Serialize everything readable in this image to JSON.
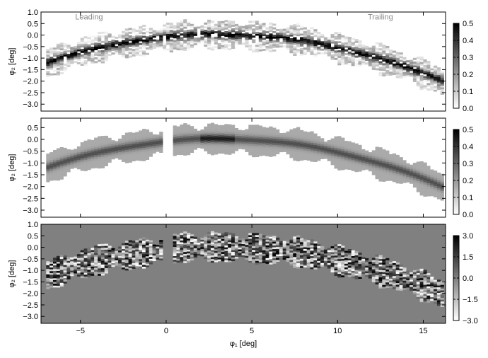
{
  "chart_data": [
    {
      "type": "heatmap",
      "panel": "data",
      "xlim": [
        -7.3,
        16.3
      ],
      "ylim": [
        -3.3,
        1.0
      ],
      "yticks": [
        1.0,
        0.5,
        0.0,
        -0.5,
        -1.0,
        -1.5,
        -2.0,
        -2.5,
        -3.0
      ],
      "ytick_labels": [
        "1.0",
        "0.5",
        "0.0",
        "−0.5",
        "−1.0",
        "−1.5",
        "−2.0",
        "−2.5",
        "−3.0"
      ],
      "ylabel": "φ₂ [deg]",
      "annotations": [
        {
          "text": "Leading",
          "x": -4.5,
          "y": 0.8
        },
        {
          "text": "Trailing",
          "x": 12.5,
          "y": 0.8
        }
      ],
      "colorbar": {
        "range": [
          0.0,
          0.5
        ],
        "ticks": [
          0.5,
          0.4,
          0.3,
          0.2,
          0.1,
          0.0
        ],
        "tick_labels": [
          "0.5",
          "0.4",
          "0.3",
          "0.2",
          "0.1",
          "0.0"
        ]
      }
    },
    {
      "type": "heatmap",
      "panel": "model",
      "xlim": [
        -7.3,
        16.3
      ],
      "ylim": [
        -3.3,
        0.9
      ],
      "yticks": [
        0.5,
        0.0,
        -0.5,
        -1.0,
        -1.5,
        -2.0,
        -2.5,
        -3.0
      ],
      "ytick_labels": [
        "0.5",
        "0.0",
        "−0.5",
        "−1.0",
        "−1.5",
        "−2.0",
        "−2.5",
        "−3.0"
      ],
      "ylabel": "φ₂ [deg]",
      "colorbar": {
        "range": [
          0.0,
          0.5
        ],
        "ticks": [
          0.5,
          0.4,
          0.3,
          0.2,
          0.1,
          0.0
        ],
        "tick_labels": [
          "0.5",
          "0.4",
          "0.3",
          "0.2",
          "0.1",
          "0.0"
        ]
      }
    },
    {
      "type": "heatmap",
      "panel": "residual",
      "xlim": [
        -7.3,
        16.3
      ],
      "ylim": [
        -3.3,
        1.0
      ],
      "xticks": [
        -5,
        0,
        5,
        10,
        15
      ],
      "xtick_labels": [
        "−5",
        "0",
        "5",
        "10",
        "15"
      ],
      "xlabel": "φ₁ [deg]",
      "yticks": [
        1.0,
        0.5,
        0.0,
        -0.5,
        -1.0,
        -1.5,
        -2.0,
        -2.5,
        -3.0
      ],
      "ytick_labels": [
        "1.0",
        "0.5",
        "0.0",
        "−0.5",
        "−1.0",
        "−1.5",
        "−2.0",
        "−2.5",
        "−3.0"
      ],
      "ylabel": "φ₂ [deg]",
      "colorbar": {
        "range": [
          -3.0,
          3.0
        ],
        "ticks": [
          3.0,
          1.5,
          0.0,
          -1.5,
          -3.0
        ],
        "tick_labels": [
          "3.0",
          "1.5",
          "0.0",
          "−1.5",
          "−3.0"
        ]
      }
    }
  ],
  "colors": {
    "frame": "#000000",
    "residual_background": "#808080",
    "annotation": "#888888",
    "model_footprint": "#aaaaaa"
  }
}
